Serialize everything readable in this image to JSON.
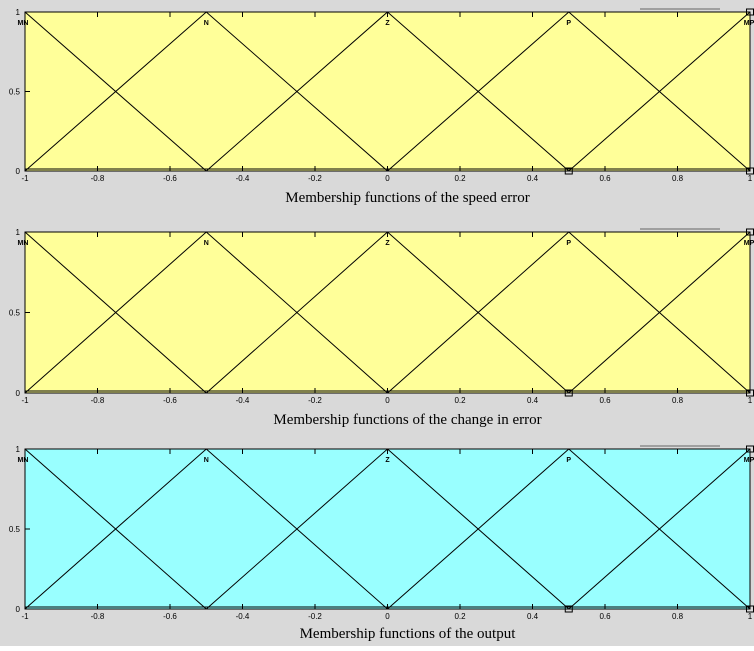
{
  "chart_data": [
    {
      "type": "line",
      "title": "Membership functions of the speed error",
      "colors": {
        "plot_bg": "#ffff99",
        "line": "#000000"
      },
      "xlim": [
        -1,
        1
      ],
      "ylim": [
        0,
        1
      ],
      "x_ticks": [
        "-1",
        "-0.8",
        "-0.6",
        "-0.4",
        "-0.2",
        "0",
        "0.2",
        "0.4",
        "0.6",
        "0.8",
        "1"
      ],
      "y_ticks": [
        "0",
        "0.5",
        "1"
      ],
      "series": [
        {
          "name": "MN",
          "x": [
            -1,
            -0.5
          ],
          "y": [
            1,
            0
          ]
        },
        {
          "name": "N",
          "x": [
            -1,
            -0.5,
            0
          ],
          "y": [
            0,
            1,
            0
          ]
        },
        {
          "name": "Z",
          "x": [
            -0.5,
            0,
            0.5
          ],
          "y": [
            0,
            1,
            0
          ]
        },
        {
          "name": "P",
          "x": [
            0,
            0.5,
            1
          ],
          "y": [
            0,
            1,
            0
          ]
        },
        {
          "name": "MP",
          "x": [
            0.5,
            1
          ],
          "y": [
            0,
            1
          ]
        }
      ]
    },
    {
      "type": "line",
      "title": "Membership functions of the change in error",
      "colors": {
        "plot_bg": "#ffff99",
        "line": "#000000"
      },
      "xlim": [
        -1,
        1
      ],
      "ylim": [
        0,
        1
      ],
      "x_ticks": [
        "-1",
        "-0.8",
        "-0.6",
        "-0.4",
        "-0.2",
        "0",
        "0.2",
        "0.4",
        "0.6",
        "0.8",
        "1"
      ],
      "y_ticks": [
        "0",
        "0.5",
        "1"
      ],
      "series": [
        {
          "name": "MN",
          "x": [
            -1,
            -0.5
          ],
          "y": [
            1,
            0
          ]
        },
        {
          "name": "N",
          "x": [
            -1,
            -0.5,
            0
          ],
          "y": [
            0,
            1,
            0
          ]
        },
        {
          "name": "Z",
          "x": [
            -0.5,
            0,
            0.5
          ],
          "y": [
            0,
            1,
            0
          ]
        },
        {
          "name": "P",
          "x": [
            0,
            0.5,
            1
          ],
          "y": [
            0,
            1,
            0
          ]
        },
        {
          "name": "MP",
          "x": [
            0.5,
            1
          ],
          "y": [
            0,
            1
          ]
        }
      ]
    },
    {
      "type": "line",
      "title": "Membership functions of the output",
      "colors": {
        "plot_bg": "#99ffff",
        "line": "#000000"
      },
      "xlim": [
        -1,
        1
      ],
      "ylim": [
        0,
        1
      ],
      "x_ticks": [
        "-1",
        "-0.8",
        "-0.6",
        "-0.4",
        "-0.2",
        "0",
        "0.2",
        "0.4",
        "0.6",
        "0.8",
        "1"
      ],
      "y_ticks": [
        "0",
        "0.5",
        "1"
      ],
      "series": [
        {
          "name": "MN",
          "x": [
            -1,
            -0.5
          ],
          "y": [
            1,
            0
          ]
        },
        {
          "name": "N",
          "x": [
            -1,
            -0.5,
            0
          ],
          "y": [
            0,
            1,
            0
          ]
        },
        {
          "name": "Z",
          "x": [
            -0.5,
            0,
            0.5
          ],
          "y": [
            0,
            1,
            0
          ]
        },
        {
          "name": "P",
          "x": [
            0,
            0.5,
            1
          ],
          "y": [
            0,
            1,
            0
          ]
        },
        {
          "name": "MP",
          "x": [
            0.5,
            1
          ],
          "y": [
            0,
            1
          ]
        }
      ]
    }
  ]
}
